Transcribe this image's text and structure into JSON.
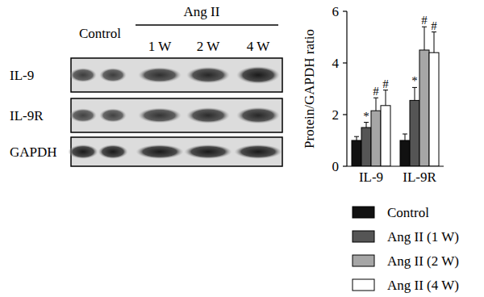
{
  "blot": {
    "group_label": "Ang II",
    "lanes": [
      "Control",
      "1 W",
      "2 W",
      "4 W"
    ],
    "rows": [
      "IL-9",
      "IL-9R",
      "GAPDH"
    ]
  },
  "chart_data": {
    "type": "bar",
    "y_label": "Protein/GAPDH ratio",
    "categories": [
      "IL-9",
      "IL-9R"
    ],
    "series": [
      {
        "name": "Control",
        "color": "#111111",
        "values": [
          1.0,
          1.0
        ],
        "errors": [
          0.15,
          0.25
        ],
        "significance": [
          null,
          null
        ]
      },
      {
        "name": "Ang II (1 W)",
        "color": "#555555",
        "values": [
          1.5,
          2.55
        ],
        "errors": [
          0.2,
          0.5
        ],
        "significance": [
          "*",
          "*"
        ]
      },
      {
        "name": "Ang II (2 W)",
        "color": "#a6a6a6",
        "values": [
          2.15,
          4.5
        ],
        "errors": [
          0.5,
          0.9
        ],
        "significance": [
          "#",
          "#"
        ]
      },
      {
        "name": "Ang II (4 W)",
        "color": "#ffffff",
        "values": [
          2.35,
          4.4
        ],
        "errors": [
          0.6,
          0.8
        ],
        "significance": [
          "#",
          "#"
        ]
      }
    ],
    "ylim": [
      0,
      6
    ],
    "yticks": [
      0,
      2,
      4,
      6
    ],
    "grid": false,
    "legend": "bottom-right"
  }
}
